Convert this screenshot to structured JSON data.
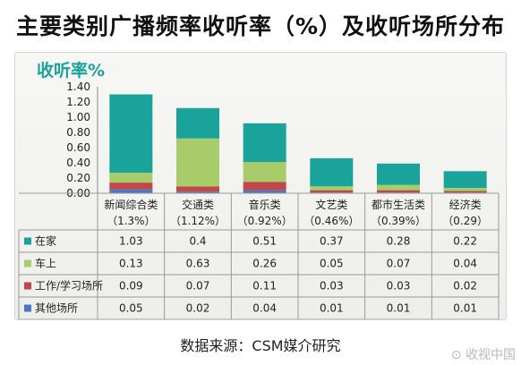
{
  "page": {
    "title": "主要类别广播频率收听率（%）及收听场所分布",
    "source": "数据来源：CSM媒介研究",
    "watermark": "收视中国"
  },
  "colors": {
    "在家": "#1aa39a",
    "车上": "#a8cc6a",
    "工作/学习场所": "#c04848",
    "其他场所": "#4a78c0",
    "grid": "#999999"
  },
  "chart_data": {
    "type": "bar",
    "stacked": true,
    "title": "收听率%",
    "ylim": [
      0,
      1.4
    ],
    "yticks": [
      "0.00",
      "0.20",
      "0.40",
      "0.60",
      "0.80",
      "1.00",
      "1.20",
      "1.40"
    ],
    "categories": [
      "新闻综合类",
      "交通类",
      "音乐类",
      "文艺类",
      "都市生活类",
      "经济类"
    ],
    "category_totals": [
      "（1.3%）",
      "（1.12%）",
      "（0.92%）",
      "（0.46%）",
      "（0.39%）",
      "（0.29）"
    ],
    "series": [
      {
        "name": "在家",
        "values": [
          1.03,
          0.4,
          0.51,
          0.37,
          0.28,
          0.22
        ],
        "labels": [
          "1.03",
          "0.4",
          "0.51",
          "0.37",
          "0.28",
          "0.22"
        ]
      },
      {
        "name": "车上",
        "values": [
          0.13,
          0.63,
          0.26,
          0.05,
          0.07,
          0.04
        ],
        "labels": [
          "0.13",
          "0.63",
          "0.26",
          "0.05",
          "0.07",
          "0.04"
        ]
      },
      {
        "name": "工作/学习场所",
        "values": [
          0.09,
          0.07,
          0.11,
          0.03,
          0.03,
          0.02
        ],
        "labels": [
          "0.09",
          "0.07",
          "0.11",
          "0.03",
          "0.03",
          "0.02"
        ]
      },
      {
        "name": "其他场所",
        "values": [
          0.05,
          0.02,
          0.04,
          0.01,
          0.01,
          0.01
        ],
        "labels": [
          "0.05",
          "0.02",
          "0.04",
          "0.01",
          "0.01",
          "0.01"
        ]
      }
    ],
    "legend_position": "table-left",
    "grid": false
  }
}
